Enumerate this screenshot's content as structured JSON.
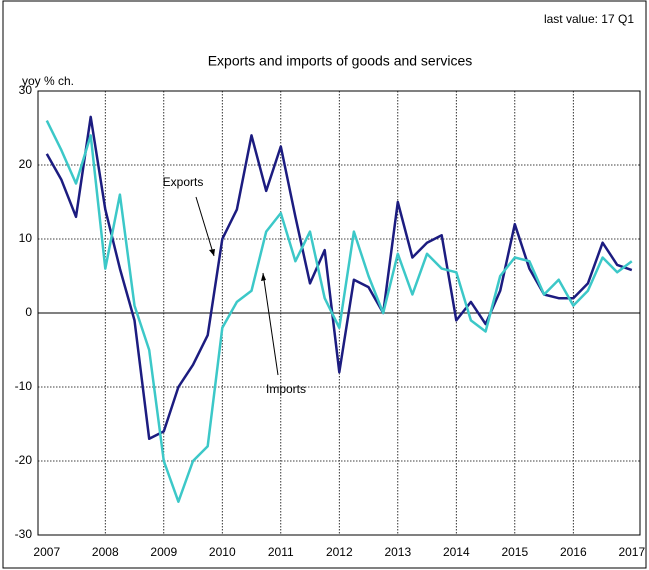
{
  "chart_data": {
    "type": "line",
    "title": "Exports and imports of goods and services",
    "subtitle": "last value: 17 Q1",
    "y_label": "yoy % ch.",
    "annotations": [
      "Exports",
      "Imports"
    ],
    "x": [
      2007,
      2007.25,
      2007.5,
      2007.75,
      2008,
      2008.25,
      2008.5,
      2008.75,
      2009,
      2009.25,
      2009.5,
      2009.75,
      2010,
      2010.25,
      2010.5,
      2010.75,
      2011,
      2011.25,
      2011.5,
      2011.75,
      2012,
      2012.25,
      2012.5,
      2012.75,
      2013,
      2013.25,
      2013.5,
      2013.75,
      2014,
      2014.25,
      2014.5,
      2014.75,
      2015,
      2015.25,
      2015.5,
      2015.75,
      2016,
      2016.25,
      2016.5,
      2016.75,
      2017
    ],
    "series": [
      {
        "name": "Exports",
        "color": "#1c1c80",
        "values": [
          21.5,
          18,
          13,
          26.5,
          14,
          6,
          -1,
          -17,
          -16,
          -10,
          -7,
          -3,
          10,
          14,
          24,
          16.5,
          22.5,
          13,
          4,
          8.5,
          -8,
          4.5,
          3.5,
          0,
          15,
          7.5,
          9.5,
          10.5,
          -1,
          1.5,
          -1.5,
          3,
          12,
          6,
          2.5,
          2,
          2,
          4,
          9.5,
          6.5,
          5.8
        ]
      },
      {
        "name": "Imports",
        "color": "#3cc8c8",
        "values": [
          26,
          22,
          17.5,
          24,
          6,
          16,
          1,
          -5,
          -20,
          -25.5,
          -20,
          -18,
          -2,
          1.5,
          3,
          11,
          13.5,
          7,
          11,
          2,
          -2,
          11,
          5,
          0,
          8,
          2.5,
          8,
          6,
          5.5,
          -1,
          -2.5,
          5,
          7.5,
          7,
          2.5,
          4.5,
          1,
          3,
          7.5,
          5.5,
          7
        ]
      }
    ],
    "xlim": [
      2006.85,
      2017.14
    ],
    "xticks": [
      2007,
      2008,
      2009,
      2010,
      2011,
      2012,
      2013,
      2014,
      2015,
      2016,
      2017
    ],
    "ylim": [
      -30,
      30
    ],
    "yticks": [
      -30,
      -20,
      -10,
      0,
      10,
      20,
      30
    ],
    "grid": true
  }
}
